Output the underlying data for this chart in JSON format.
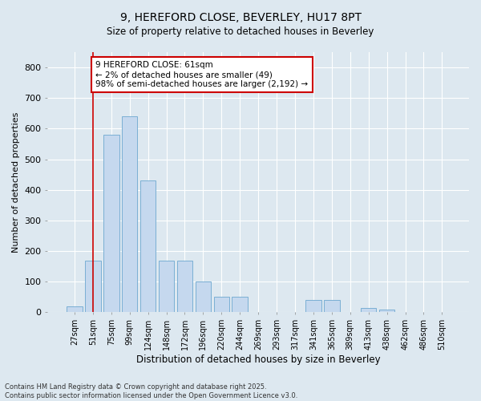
{
  "title_line1": "9, HEREFORD CLOSE, BEVERLEY, HU17 8PT",
  "title_line2": "Size of property relative to detached houses in Beverley",
  "xlabel": "Distribution of detached houses by size in Beverley",
  "ylabel": "Number of detached properties",
  "bar_color": "#c5d8ee",
  "bar_edge_color": "#7aafd4",
  "background_color": "#dde8f0",
  "grid_color": "#ffffff",
  "categories": [
    "27sqm",
    "51sqm",
    "75sqm",
    "99sqm",
    "124sqm",
    "148sqm",
    "172sqm",
    "196sqm",
    "220sqm",
    "244sqm",
    "269sqm",
    "293sqm",
    "317sqm",
    "341sqm",
    "365sqm",
    "389sqm",
    "413sqm",
    "438sqm",
    "462sqm",
    "486sqm",
    "510sqm"
  ],
  "values": [
    20,
    170,
    580,
    640,
    430,
    170,
    170,
    100,
    50,
    50,
    0,
    0,
    0,
    40,
    40,
    0,
    15,
    10,
    0,
    0,
    0
  ],
  "property_line_idx": 1,
  "annotation_text": "9 HEREFORD CLOSE: 61sqm\n← 2% of detached houses are smaller (49)\n98% of semi-detached houses are larger (2,192) →",
  "annotation_box_color": "#ffffff",
  "annotation_box_edge": "#cc0000",
  "vline_color": "#cc0000",
  "footer_line1": "Contains HM Land Registry data © Crown copyright and database right 2025.",
  "footer_line2": "Contains public sector information licensed under the Open Government Licence v3.0.",
  "ylim": [
    0,
    850
  ],
  "yticks": [
    0,
    100,
    200,
    300,
    400,
    500,
    600,
    700,
    800
  ]
}
